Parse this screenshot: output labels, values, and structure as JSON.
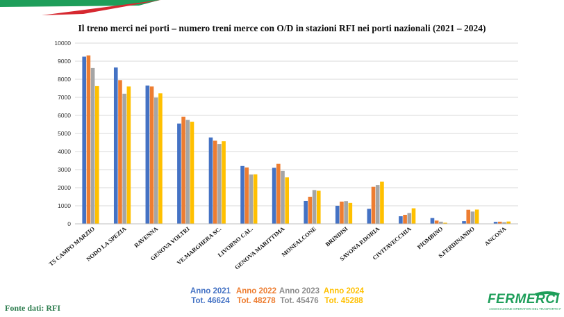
{
  "chart_data": {
    "type": "bar",
    "title": "Il treno merci nei porti – numero treni merce con O/D in stazioni RFI nei porti nazionali (2021 – 2024)",
    "categories": [
      "TS CAMPO MARZIO",
      "NODO LA SPEZIA",
      "RAVENNA",
      "GENOVA VOLTRI",
      "VE.MARGHERA SC.",
      "LIVORNO CAL.",
      "GENOVA MARITTIMA",
      "MONFALCONE",
      "BRINDISI",
      "SAVONA P.DORIA",
      "CIVITAVECCHIA",
      "PIOMBINO",
      "S.FERDINANDO",
      "ANCONA"
    ],
    "series": [
      {
        "name": "Anno 2021",
        "total": "Tot. 46624",
        "color": "#4472C4",
        "values": [
          9250,
          8650,
          7650,
          5550,
          4780,
          3200,
          3100,
          1270,
          1000,
          830,
          420,
          320,
          150,
          110
        ]
      },
      {
        "name": "Anno 2022",
        "total": "Tot. 48278",
        "color": "#ED7D31",
        "values": [
          9320,
          7950,
          7600,
          5930,
          4600,
          3120,
          3320,
          1500,
          1230,
          2050,
          500,
          180,
          780,
          120
        ]
      },
      {
        "name": "Anno 2023",
        "total": "Tot. 45476",
        "color": "#A5A5A5",
        "values": [
          8620,
          7200,
          6980,
          5750,
          4420,
          2730,
          2930,
          1870,
          1260,
          2150,
          600,
          120,
          680,
          90
        ]
      },
      {
        "name": "Anno 2024",
        "total": "Tot. 45288",
        "color": "#FFC000",
        "values": [
          7620,
          7600,
          7220,
          5650,
          4570,
          2740,
          2570,
          1830,
          1160,
          2330,
          860,
          60,
          790,
          130
        ]
      }
    ],
    "ylim": [
      0,
      10000
    ],
    "yticks": [
      "0",
      "1000",
      "2000",
      "3000",
      "4000",
      "5000",
      "6000",
      "7000",
      "8000",
      "9000",
      "10000"
    ],
    "grid": true,
    "legend": "bottom"
  },
  "source_note": "Fonte dati: RFI",
  "logo": {
    "name": "FERMERCI",
    "tagline": "ASSOCIAZIONE OPERATORI DEL TRASPORTO FERROVIARIO MERCI"
  },
  "colors": {
    "accent_green": "#1e9e5a",
    "accent_red": "#d62830",
    "source_green": "#2e7d4f"
  }
}
